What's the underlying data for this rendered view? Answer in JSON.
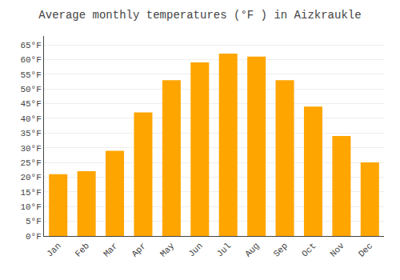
{
  "chart_data": {
    "type": "bar",
    "title": "Average monthly temperatures (°F ) in Aizkraukle",
    "categories": [
      "Jan",
      "Feb",
      "Mar",
      "Apr",
      "May",
      "Jun",
      "Jul",
      "Aug",
      "Sep",
      "Oct",
      "Nov",
      "Dec"
    ],
    "values": [
      21,
      22,
      29,
      42,
      53,
      59,
      62,
      61,
      53,
      44,
      34,
      25
    ],
    "color": "#FFA500",
    "ylim": [
      0,
      68
    ],
    "yticks": [
      {
        "value": 0,
        "label": "0°F"
      },
      {
        "value": 5,
        "label": "5°F"
      },
      {
        "value": 10,
        "label": "10°F"
      },
      {
        "value": 15,
        "label": "15°F"
      },
      {
        "value": 20,
        "label": "20°F"
      },
      {
        "value": 25,
        "label": "25°F"
      },
      {
        "value": 30,
        "label": "30°F"
      },
      {
        "value": 35,
        "label": "35°F"
      },
      {
        "value": 40,
        "label": "40°F"
      },
      {
        "value": 45,
        "label": "45°F"
      },
      {
        "value": 50,
        "label": "50°F"
      },
      {
        "value": 55,
        "label": "55°F"
      },
      {
        "value": 60,
        "label": "60°F"
      },
      {
        "value": 65,
        "label": "65°F"
      }
    ],
    "grid": true
  }
}
